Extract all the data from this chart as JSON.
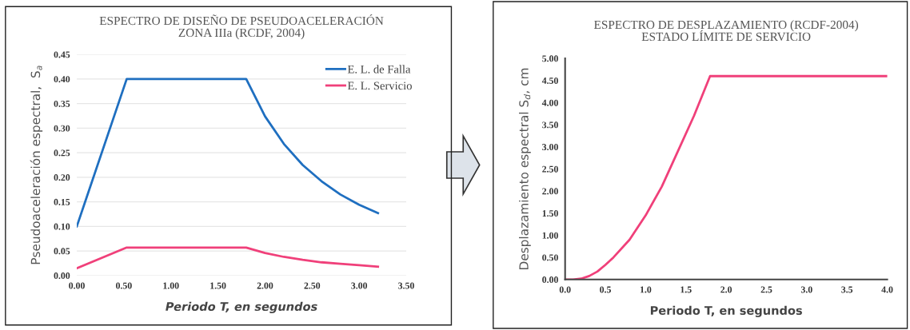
{
  "chart_data": [
    {
      "type": "line",
      "title": "ESPECTRO DE DISEÑO DE PSEUDOACELERACIÓN\nZONA IIIa (RCDF, 2004)",
      "xlabel": "Periodo T, en segundos",
      "ylabel": "Pseudoaceleración espectral,  S$_{a}$",
      "xlim": [
        0,
        3.5
      ],
      "xticks": [
        {
          "value": 0,
          "label": "0.00"
        },
        {
          "value": 0.5,
          "label": "0.50"
        },
        {
          "value": 1,
          "label": "1.00"
        },
        {
          "value": 1.5,
          "label": "1.50"
        },
        {
          "value": 2,
          "label": "2.00"
        },
        {
          "value": 2.5,
          "label": "2.50"
        },
        {
          "value": 3,
          "label": "3.00"
        },
        {
          "value": 3.5,
          "label": "3.50"
        }
      ],
      "ylim": [
        0,
        0.45
      ],
      "yticks": [
        {
          "value": 0,
          "label": "0.00"
        },
        {
          "value": 0.05,
          "label": "0.05"
        },
        {
          "value": 0.1,
          "label": "0.10"
        },
        {
          "value": 0.15,
          "label": "0.15"
        },
        {
          "value": 0.2,
          "label": "0.20"
        },
        {
          "value": 0.25,
          "label": "0.25"
        },
        {
          "value": 0.3,
          "label": "0.30"
        },
        {
          "value": 0.35,
          "label": "0.35"
        },
        {
          "value": 0.4,
          "label": "0.40"
        },
        {
          "value": 0.45,
          "label": "0.45"
        }
      ],
      "grid": "y",
      "legend": "top right",
      "marker": "none",
      "series": [
        {
          "name": "E. L. de Falla",
          "color": "#1f6fc0",
          "x": [
            0,
            0.53,
            1.8,
            2.0,
            2.2,
            2.4,
            2.6,
            2.8,
            3.0,
            3.2
          ],
          "values": [
            0.1,
            0.4,
            0.4,
            0.324,
            0.268,
            0.225,
            0.192,
            0.165,
            0.144,
            0.127
          ]
        },
        {
          "name": "E. L. Servicio",
          "color": "#f0407a",
          "x": [
            0,
            0.53,
            1.8,
            2.0,
            2.2,
            2.4,
            2.6,
            2.8,
            3.0,
            3.2
          ],
          "values": [
            0.015,
            0.057,
            0.057,
            0.046,
            0.038,
            0.032,
            0.027,
            0.024,
            0.021,
            0.018
          ]
        }
      ]
    },
    {
      "type": "line",
      "title": "ESPECTRO DE DESPLAZAMIENTO (RCDF-2004)\nESTADO LÍMITE DE SERVICIO",
      "xlabel": "Periodo T, en segundos",
      "ylabel": "Desplazamiento espectral S$_{d}$, cm",
      "xlim": [
        0,
        4
      ],
      "xticks": [
        {
          "value": 0,
          "label": "0.0"
        },
        {
          "value": 0.5,
          "label": "0.5"
        },
        {
          "value": 1,
          "label": "1.0"
        },
        {
          "value": 1.5,
          "label": "1.5"
        },
        {
          "value": 2,
          "label": "2.0"
        },
        {
          "value": 2.5,
          "label": "2.5"
        },
        {
          "value": 3,
          "label": "3.0"
        },
        {
          "value": 3.5,
          "label": "3.5"
        },
        {
          "value": 4,
          "label": "4.0"
        }
      ],
      "ylim": [
        0,
        5
      ],
      "yticks": [
        {
          "value": 0,
          "label": "0.00"
        },
        {
          "value": 0.5,
          "label": "0.50"
        },
        {
          "value": 1,
          "label": "1.00"
        },
        {
          "value": 1.5,
          "label": "1.50"
        },
        {
          "value": 2,
          "label": "2.00"
        },
        {
          "value": 2.5,
          "label": "2.50"
        },
        {
          "value": 3,
          "label": "3.00"
        },
        {
          "value": 3.5,
          "label": "3.50"
        },
        {
          "value": 4,
          "label": "4.00"
        },
        {
          "value": 4.5,
          "label": "4.50"
        },
        {
          "value": 5,
          "label": "5.00"
        }
      ],
      "grid": false,
      "marker": "none",
      "series": [
        {
          "color": "#f0407a",
          "x": [
            0,
            0.1,
            0.2,
            0.3,
            0.4,
            0.5,
            0.6,
            0.8,
            1.0,
            1.2,
            1.4,
            1.6,
            1.8,
            4.0
          ],
          "values": [
            0,
            0,
            0.02,
            0.08,
            0.18,
            0.33,
            0.5,
            0.9,
            1.45,
            2.1,
            2.9,
            3.7,
            4.6,
            4.6
          ]
        }
      ]
    }
  ]
}
